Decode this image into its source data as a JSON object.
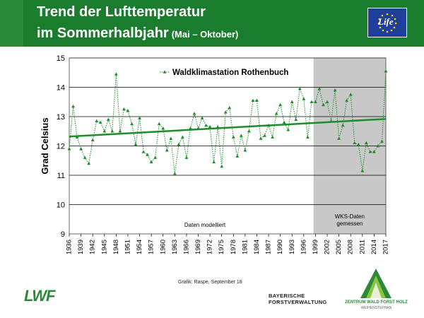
{
  "header": {
    "title_line1": "Trend der Lufttemperatur",
    "title_line2": "im Sommerhalbjahr",
    "title_sub": "(Mai – Oktober)",
    "eu_logo_text": "Life"
  },
  "footer": {
    "credit": "Grafik: Raspe, September 18",
    "lwf_logo": "LWF",
    "bay_line1": "BAYERISCHE",
    "bay_line2": "FORSTVERWALTUNG",
    "zwfh_line1": "ZENTRUM WALD FORST HOLZ",
    "zwfh_line2": "WEIHENSTEPHAN"
  },
  "colors": {
    "header_green": "#1a7d2e",
    "series_green": "#1e8c2a",
    "shade_gray": "#c8c8c8"
  },
  "chart_data": {
    "type": "line",
    "ylabel": "Grad Celsius",
    "ylim": [
      9,
      15
    ],
    "yticks": [
      9,
      10,
      11,
      12,
      13,
      14,
      15
    ],
    "xlim": [
      1936,
      2017
    ],
    "xticks": [
      1936,
      1939,
      1942,
      1945,
      1948,
      1951,
      1954,
      1957,
      1960,
      1963,
      1966,
      1969,
      1972,
      1975,
      1978,
      1981,
      1984,
      1987,
      1990,
      1993,
      1996,
      1999,
      2002,
      2005,
      2008,
      2011,
      2014,
      2017
    ],
    "grid": "horizontal",
    "legend": "top-left",
    "series": [
      {
        "name": "Waldklimastation Rothenbuch",
        "style": "dotted-with-triangles",
        "x": [
          1936,
          1937,
          1938,
          1939,
          1940,
          1941,
          1942,
          1943,
          1944,
          1945,
          1946,
          1947,
          1948,
          1949,
          1950,
          1951,
          1952,
          1953,
          1954,
          1955,
          1956,
          1957,
          1958,
          1959,
          1960,
          1961,
          1962,
          1963,
          1964,
          1965,
          1966,
          1967,
          1968,
          1969,
          1970,
          1971,
          1972,
          1973,
          1974,
          1975,
          1976,
          1977,
          1978,
          1979,
          1980,
          1981,
          1982,
          1983,
          1984,
          1985,
          1986,
          1987,
          1988,
          1989,
          1990,
          1991,
          1992,
          1993,
          1994,
          1995,
          1996,
          1997,
          1998,
          1999,
          2000,
          2001,
          2002,
          2003,
          2004,
          2005,
          2006,
          2007,
          2008,
          2009,
          2010,
          2011,
          2012,
          2013,
          2014,
          2015,
          2016,
          2017
        ],
        "values": [
          11.9,
          13.35,
          12.3,
          11.9,
          11.6,
          11.4,
          12.2,
          12.85,
          12.8,
          12.5,
          12.9,
          12.5,
          14.45,
          12.5,
          13.25,
          13.2,
          12.75,
          12.05,
          12.95,
          11.8,
          11.7,
          11.45,
          11.6,
          12.75,
          12.6,
          11.85,
          12.25,
          11.05,
          12.05,
          12.3,
          11.6,
          12.6,
          13.1,
          12.6,
          12.95,
          12.7,
          12.65,
          11.45,
          12.65,
          11.3,
          13.15,
          13.3,
          12.3,
          11.65,
          12.35,
          11.85,
          12.5,
          13.55,
          13.55,
          12.25,
          12.35,
          12.7,
          12.3,
          13.1,
          13.4,
          12.8,
          12.55,
          13.5,
          12.9,
          13.95,
          13.6,
          12.3,
          13.5,
          13.5,
          13.95,
          13.4,
          13.5,
          12.85,
          13.9,
          12.25,
          12.7,
          13.55,
          13.75,
          12.1,
          12.05,
          11.15,
          12.1,
          11.8,
          11.8,
          12.0,
          12.15,
          14.55
        ]
      },
      {
        "name": "trend",
        "style": "solid",
        "x": [
          1936,
          2017
        ],
        "values": [
          12.32,
          12.92
        ]
      }
    ],
    "shaded_region": {
      "x_start": 1998,
      "x_end": 2017
    },
    "annotations": {
      "modeled": "Daten modelliert",
      "measured_line1": "WKS-Daten",
      "measured_line2": "gemessen"
    }
  }
}
